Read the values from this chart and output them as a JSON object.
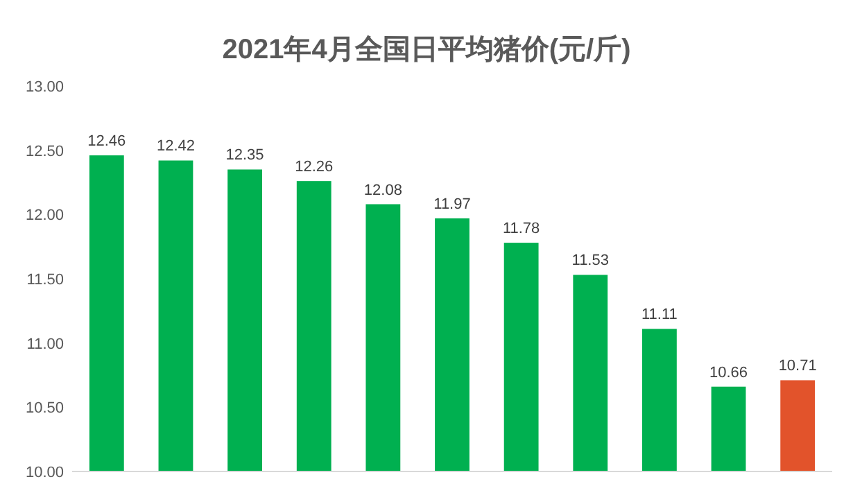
{
  "chart_data": {
    "type": "bar",
    "title": "2021年4月全国日平均猪价(元/斤)",
    "categories": [
      null,
      null,
      null,
      null,
      null,
      null,
      null,
      null,
      null,
      null,
      null
    ],
    "values": [
      12.46,
      12.42,
      12.35,
      12.26,
      12.08,
      11.97,
      11.78,
      11.53,
      11.11,
      10.66,
      10.71
    ],
    "colors": [
      "#00b050",
      "#00b050",
      "#00b050",
      "#00b050",
      "#00b050",
      "#00b050",
      "#00b050",
      "#00b050",
      "#00b050",
      "#00b050",
      "#e2532b"
    ],
    "ylim": [
      10,
      13
    ],
    "yticks": [
      {
        "value": 10,
        "label": "10.00"
      },
      {
        "value": 10.5,
        "label": "10.50"
      },
      {
        "value": 11,
        "label": "11.00"
      },
      {
        "value": 11.5,
        "label": "11.50"
      },
      {
        "value": 12,
        "label": "12.00"
      },
      {
        "value": 12.5,
        "label": "12.50"
      },
      {
        "value": 13,
        "label": "13.00"
      }
    ],
    "data_labels": true
  }
}
